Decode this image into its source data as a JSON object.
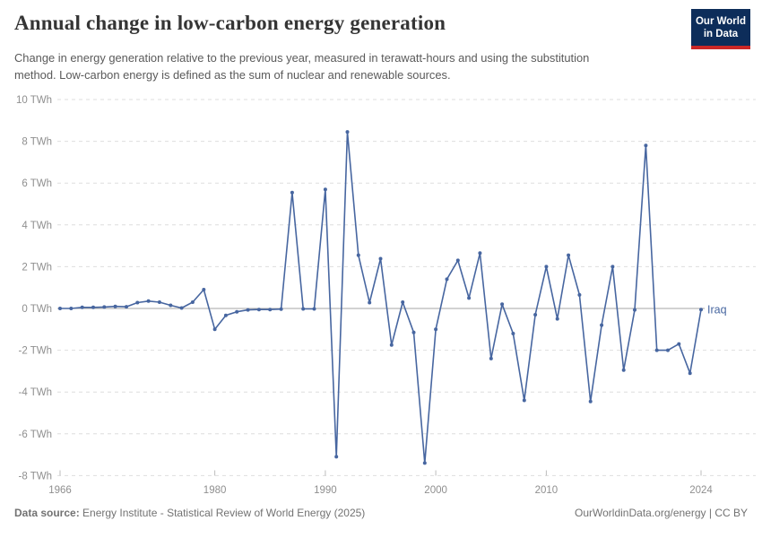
{
  "header": {
    "title": "Annual change in low-carbon energy generation",
    "subtitle": "Change in energy generation relative to the previous year, measured in terawatt-hours and using the substitution method. Low-carbon energy is defined as the sum of nuclear and renewable sources.",
    "logo": {
      "line1": "Our World",
      "line2": "in Data",
      "bg_color": "#0d2d5a",
      "stripe_color": "#cb2726"
    }
  },
  "chart_data": {
    "type": "line",
    "entity": "Iraq",
    "unit": "TWh",
    "line_color": "#4766a0",
    "grid": true,
    "xlim": [
      1966,
      2024
    ],
    "ylim": [
      -8,
      10
    ],
    "xticks": [
      1966,
      1980,
      1990,
      2000,
      2010,
      2024
    ],
    "yticks": [
      10,
      8,
      6,
      4,
      2,
      0,
      -2,
      -4,
      -6,
      -8
    ],
    "x": [
      1966,
      1967,
      1968,
      1969,
      1970,
      1971,
      1972,
      1973,
      1974,
      1975,
      1976,
      1977,
      1978,
      1979,
      1980,
      1981,
      1982,
      1983,
      1984,
      1985,
      1986,
      1987,
      1988,
      1989,
      1990,
      1991,
      1992,
      1993,
      1994,
      1995,
      1996,
      1997,
      1998,
      1999,
      2000,
      2001,
      2002,
      2003,
      2004,
      2005,
      2006,
      2007,
      2008,
      2009,
      2010,
      2011,
      2012,
      2013,
      2014,
      2015,
      2016,
      2017,
      2018,
      2019,
      2020,
      2021,
      2022,
      2023,
      2024
    ],
    "values": [
      0.0,
      0.0,
      0.05,
      0.05,
      0.07,
      0.1,
      0.08,
      0.28,
      0.35,
      0.3,
      0.15,
      0.02,
      0.3,
      0.9,
      -1.0,
      -0.33,
      -0.16,
      -0.07,
      -0.05,
      -0.05,
      -0.03,
      5.55,
      -0.02,
      -0.02,
      5.7,
      -7.1,
      8.45,
      2.55,
      0.28,
      2.38,
      -1.75,
      0.3,
      -1.15,
      -7.4,
      -1.0,
      1.4,
      2.3,
      0.5,
      2.65,
      -2.4,
      0.2,
      -1.2,
      -4.4,
      -0.3,
      2.0,
      -0.5,
      2.55,
      0.65,
      -4.45,
      -0.8,
      2.0,
      -2.95,
      -0.07,
      7.8,
      -2.0,
      -2.0,
      -1.7,
      -3.1,
      -0.05
    ]
  },
  "footer": {
    "source_label": "Data source:",
    "source_text": " Energy Institute - Statistical Review of World Energy (2025)",
    "credit": "OurWorldinData.org/energy | CC BY"
  }
}
